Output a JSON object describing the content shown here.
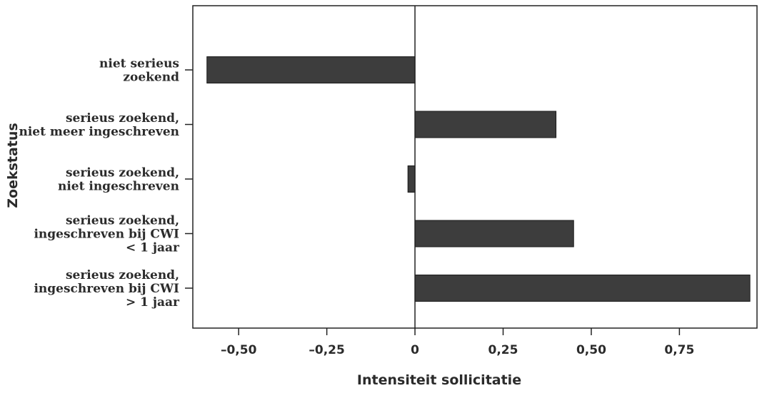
{
  "chart_data": {
    "type": "bar",
    "orientation": "horizontal",
    "xlabel": "Intensiteit sollicitatie",
    "ylabel": "Zoekstatus",
    "xlim": [
      -0.63,
      0.97
    ],
    "grid": false,
    "legend": "none",
    "bar_color": "#3d3d3d",
    "categories": [
      {
        "lines": [
          "niet serieus",
          "zoekend"
        ],
        "value": -0.59
      },
      {
        "lines": [
          "serieus zoekend,",
          "niet meer ingeschreven"
        ],
        "value": 0.4
      },
      {
        "lines": [
          "serieus zoekend,",
          "niet ingeschreven"
        ],
        "value": -0.02
      },
      {
        "lines": [
          "serieus zoekend,",
          "ingeschreven bij CWI",
          "< 1 jaar"
        ],
        "value": 0.45
      },
      {
        "lines": [
          "serieus zoekend,",
          "ingeschreven bij CWI",
          "> 1 jaar"
        ],
        "value": 0.95
      }
    ],
    "xticks": [
      -0.5,
      -0.25,
      0,
      0.25,
      0.5,
      0.75
    ],
    "xtick_labels": [
      "–0,50",
      "–0,25",
      "0",
      "0,25",
      "0,50",
      "0,75"
    ]
  }
}
